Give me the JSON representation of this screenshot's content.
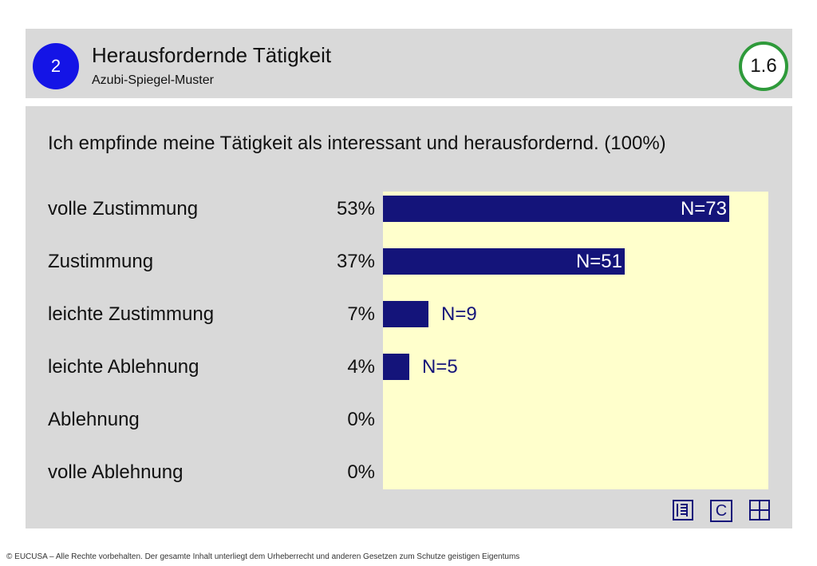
{
  "header": {
    "section_number": "2",
    "title": "Herausfordernde Tätigkeit",
    "subtitle": "Azubi-Spiegel-Muster",
    "slide_number": "1.6"
  },
  "question": "Ich empfinde meine Tätigkeit als interessant und herausfordernd. (100%)",
  "chart_data": {
    "type": "bar",
    "orientation": "horizontal",
    "categories": [
      "volle Zustimmung",
      "Zustimmung",
      "leichte Zustimmung",
      "leichte Ablehnung",
      "Ablehnung",
      "volle Ablehnung"
    ],
    "percent_labels": [
      "53%",
      "37%",
      "7%",
      "4%",
      "0%",
      "0%"
    ],
    "values": [
      53,
      37,
      7,
      4,
      0,
      0
    ],
    "counts": [
      "N=73",
      "N=51",
      "N=9",
      "N=5",
      "",
      ""
    ],
    "xlim": [
      0,
      59
    ],
    "bar_color": "#14147a",
    "plot_background": "#ffffcc"
  },
  "icons": [
    {
      "name": "list-view-icon"
    },
    {
      "name": "c-icon",
      "text": "C"
    },
    {
      "name": "grid-view-icon"
    }
  ],
  "footer": "© EUCUSA – Alle Rechte vorbehalten. Der gesamte Inhalt unterliegt dem Urheberrecht und anderen Gesetzen zum Schutze geistigen Eigentums"
}
